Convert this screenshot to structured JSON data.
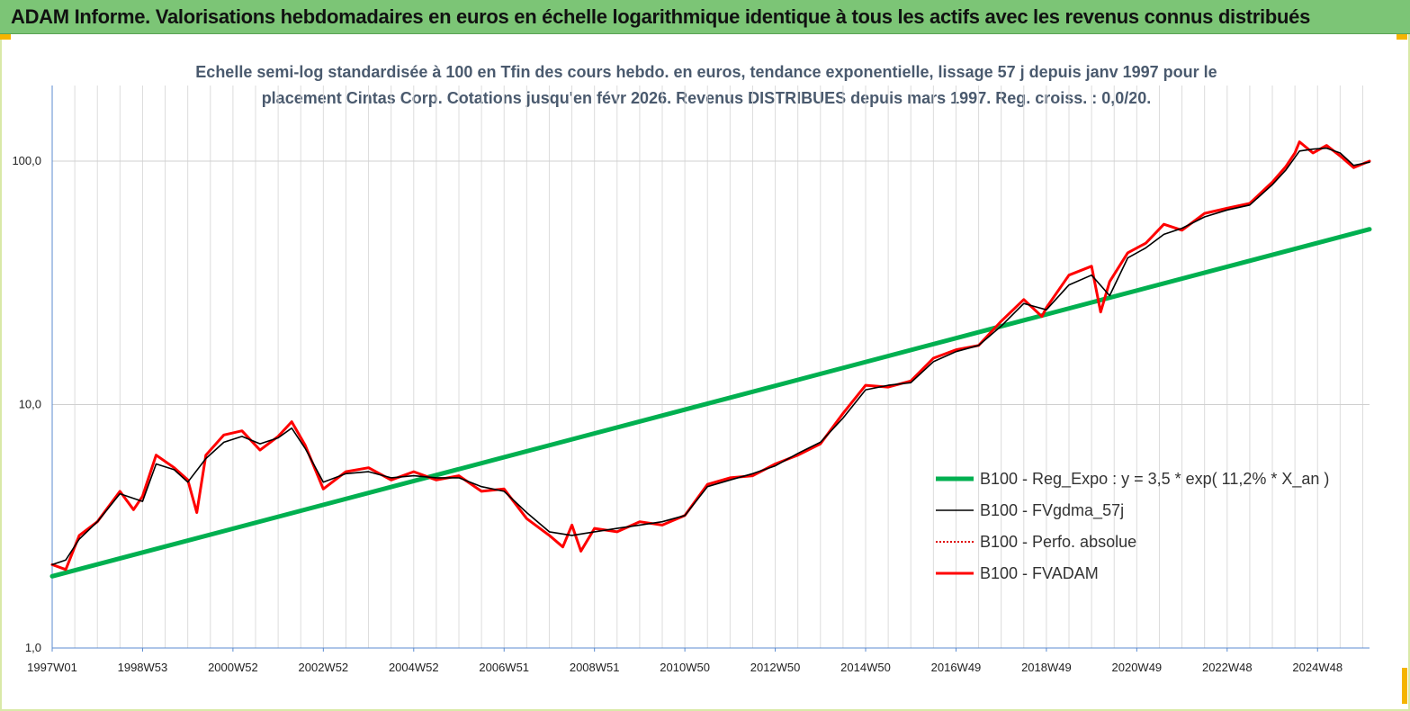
{
  "header": {
    "title": "ADAM Informe. Valorisations hebdomadaires en euros en échelle logarithmique identique à tous les actifs avec les revenus connus distribués"
  },
  "chart_data": {
    "type": "line",
    "title": "Echelle semi-log standardisée à 100 en Tfin des cours hebdo. en euros, tendance exponentielle, lissage 57 j depuis janv 1997 pour le placement Cintas Corp. Cotations jusqu'en févr 2026. Revenus DISTRIBUES depuis mars 1997. Reg. croiss. : 0,0/20.",
    "y_scale": "log",
    "ylim": [
      1,
      180
    ],
    "y_ticks": [
      "1,0",
      "10,0",
      "100,0"
    ],
    "y_tick_values": [
      1,
      10,
      100
    ],
    "xlim": [
      1997.0,
      2026.15
    ],
    "x_tick_labels": [
      "1997W01",
      "1998W53",
      "2000W52",
      "2002W52",
      "2004W52",
      "2006W51",
      "2008W51",
      "2010W50",
      "2012W50",
      "2014W50",
      "2016W49",
      "2018W49",
      "2020W49",
      "2022W48",
      "2024W48"
    ],
    "x_tick_values": [
      1997.0,
      1999.0,
      2001.0,
      2003.0,
      2005.0,
      2007.0,
      2009.0,
      2011.0,
      2013.0,
      2015.0,
      2017.0,
      2019.0,
      2021.0,
      2023.0,
      2025.0
    ],
    "grid": "vertical",
    "legend_position": "right",
    "series": [
      {
        "name": "B100 - Reg_Expo : y = 3,5 * exp( 11,2% *  X_an )",
        "color": "#00b050",
        "style": "solid-thick",
        "x": [
          1997.0,
          2026.15
        ],
        "y": [
          1.97,
          52.5
        ]
      },
      {
        "name": "B100 - FVgdma_57j",
        "color": "#000000",
        "style": "solid-thin",
        "x": [
          1997.0,
          1997.3,
          1997.6,
          1998.0,
          1998.5,
          1999.0,
          1999.3,
          1999.7,
          2000.0,
          2000.4,
          2000.8,
          2001.2,
          2001.6,
          2002.0,
          2002.3,
          2002.6,
          2003.0,
          2003.5,
          2004.0,
          2004.5,
          2005.0,
          2005.5,
          2006.0,
          2006.5,
          2007.0,
          2007.5,
          2008.0,
          2008.5,
          2009.0,
          2009.5,
          2010.0,
          2010.5,
          2011.0,
          2011.5,
          2012.0,
          2012.5,
          2013.0,
          2013.5,
          2014.0,
          2014.5,
          2015.0,
          2015.5,
          2016.0,
          2016.5,
          2017.0,
          2017.5,
          2018.0,
          2018.5,
          2019.0,
          2019.5,
          2020.0,
          2020.4,
          2020.8,
          2021.2,
          2021.6,
          2022.0,
          2022.5,
          2023.0,
          2023.5,
          2024.0,
          2024.3,
          2024.6,
          2024.9,
          2025.2,
          2025.5,
          2025.8,
          2026.15
        ],
        "y": [
          2.2,
          2.3,
          2.8,
          3.3,
          4.3,
          4.0,
          5.7,
          5.4,
          4.8,
          6.0,
          7.0,
          7.4,
          6.9,
          7.3,
          8.0,
          6.6,
          4.8,
          5.2,
          5.3,
          5.0,
          5.1,
          5.0,
          5.0,
          4.6,
          4.4,
          3.6,
          3.0,
          2.9,
          3.0,
          3.1,
          3.2,
          3.3,
          3.5,
          4.6,
          4.9,
          5.2,
          5.6,
          6.3,
          7.0,
          8.8,
          11.5,
          12.0,
          12.3,
          15.0,
          16.5,
          17.5,
          21.0,
          26.0,
          24.5,
          31.0,
          34.0,
          28.0,
          40.0,
          44.0,
          50.0,
          53.0,
          59.0,
          63.0,
          66.0,
          80.0,
          92.0,
          110.0,
          112.0,
          113.0,
          108.0,
          96.0,
          99.0
        ]
      },
      {
        "name": "B100 - Perfo. absolue",
        "color": "#e00000",
        "style": "dotted"
      },
      {
        "name": "B100 - FVADAM",
        "color": "#ff0000",
        "style": "solid-thick",
        "x": [
          1997.0,
          1997.3,
          1997.6,
          1998.0,
          1998.5,
          1998.8,
          1999.0,
          1999.3,
          1999.7,
          2000.0,
          2000.2,
          2000.4,
          2000.8,
          2001.2,
          2001.6,
          2002.0,
          2002.3,
          2002.6,
          2003.0,
          2003.5,
          2004.0,
          2004.5,
          2005.0,
          2005.5,
          2006.0,
          2006.5,
          2007.0,
          2007.5,
          2008.0,
          2008.3,
          2008.5,
          2008.7,
          2009.0,
          2009.5,
          2010.0,
          2010.5,
          2011.0,
          2011.5,
          2012.0,
          2012.5,
          2013.0,
          2013.5,
          2014.0,
          2014.5,
          2015.0,
          2015.5,
          2016.0,
          2016.5,
          2017.0,
          2017.5,
          2018.0,
          2018.5,
          2018.9,
          2019.0,
          2019.5,
          2020.0,
          2020.2,
          2020.4,
          2020.8,
          2021.2,
          2021.6,
          2022.0,
          2022.5,
          2023.0,
          2023.5,
          2024.0,
          2024.3,
          2024.5,
          2024.6,
          2024.9,
          2025.2,
          2025.5,
          2025.8,
          2026.15
        ],
        "y": [
          2.2,
          2.1,
          2.9,
          3.3,
          4.4,
          3.7,
          4.2,
          6.2,
          5.5,
          4.9,
          3.6,
          6.2,
          7.5,
          7.8,
          6.5,
          7.4,
          8.5,
          6.8,
          4.5,
          5.3,
          5.5,
          4.9,
          5.3,
          4.9,
          5.1,
          4.4,
          4.5,
          3.4,
          2.9,
          2.6,
          3.2,
          2.5,
          3.1,
          3.0,
          3.3,
          3.2,
          3.5,
          4.7,
          5.0,
          5.1,
          5.7,
          6.2,
          6.9,
          9.2,
          12.0,
          11.8,
          12.5,
          15.5,
          16.8,
          17.5,
          22.0,
          27.0,
          23.0,
          25.0,
          34.0,
          37.0,
          24.0,
          32.0,
          42.0,
          46.0,
          55.0,
          52.0,
          61.0,
          64.0,
          67.0,
          82.0,
          95.0,
          108.0,
          120.0,
          108.0,
          116.0,
          105.0,
          94.0,
          100.0
        ]
      }
    ]
  }
}
